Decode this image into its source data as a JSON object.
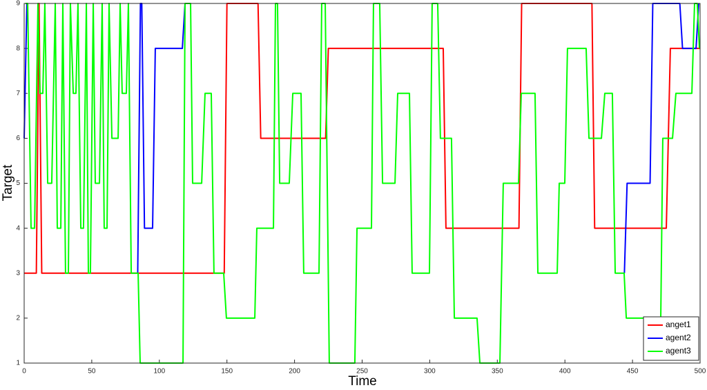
{
  "chart_data": {
    "type": "line",
    "xlabel": "Time",
    "ylabel": "Target",
    "xlim": [
      0,
      500
    ],
    "ylim": [
      1,
      9
    ],
    "xticks": [
      0,
      50,
      100,
      150,
      200,
      250,
      300,
      350,
      400,
      450,
      500
    ],
    "yticks": [
      1,
      2,
      3,
      4,
      5,
      6,
      7,
      8,
      9
    ],
    "grid": false,
    "legend": "southeast",
    "series": [
      {
        "name": "anget1",
        "color": "#ff0000",
        "x": [
          0,
          9,
          11,
          13,
          148,
          150,
          173,
          175,
          223,
          225,
          310,
          312,
          366,
          368,
          420,
          422,
          475,
          478,
          500
        ],
        "values": [
          3,
          3,
          9,
          3,
          3,
          9,
          9,
          6,
          6,
          8,
          8,
          4,
          4,
          9,
          9,
          4,
          4,
          8,
          8
        ]
      },
      {
        "name": "agent2",
        "color": "#0000ff",
        "x": [
          0,
          2,
          4,
          84,
          86,
          87,
          89,
          95,
          97,
          117,
          119,
          150,
          444,
          446,
          463,
          465,
          485,
          487,
          497,
          499
        ],
        "values": [
          6,
          9,
          null,
          3,
          9,
          9,
          4,
          4,
          8,
          8,
          9,
          null,
          3,
          5,
          5,
          9,
          9,
          8,
          8,
          9
        ]
      },
      {
        "name": "agent3",
        "color": "#00ff00",
        "x": [
          1,
          2.6,
          5.1,
          7.7,
          10.2,
          11.7,
          13.8,
          15.3,
          17.4,
          20.4,
          23,
          24.5,
          27.1,
          28.6,
          30.6,
          32.7,
          34.2,
          36.3,
          38.3,
          39.8,
          41.9,
          43.9,
          46,
          47.5,
          49,
          51.1,
          52.6,
          55.7,
          57.7,
          59.2,
          61.3,
          62.8,
          64.9,
          69.5,
          71,
          72.5,
          75.6,
          77.1,
          79.2,
          84.3,
          85.8,
          117.5,
          119,
          123.1,
          124.6,
          131.3,
          133.8,
          138.4,
          140.4,
          147.6,
          149.6,
          170.6,
          172.1,
          184.4,
          185.9,
          187.4,
          189,
          196.1,
          198.7,
          204.8,
          206.8,
          218.1,
          220.1,
          222.7,
          225.7,
          244.6,
          246.2,
          256.9,
          258.4,
          263,
          265.1,
          274.3,
          276.3,
          285,
          287,
          299.8,
          301.8,
          305.9,
          307.9,
          316.1,
          318.2,
          335,
          337.1,
          351.9,
          354.4,
          365.7,
          367.7,
          377.9,
          380,
          394.3,
          395.8,
          399.9,
          401.9,
          415.7,
          417.8,
          427,
          429.5,
          435.1,
          437.2,
          443.8,
          445.4,
          470.9,
          472.4,
          479.6,
          482.1,
          493.9,
          495.9,
          497.9,
          499.5
        ],
        "values": [
          9,
          9,
          4,
          4,
          9,
          7,
          7,
          9,
          5,
          5,
          9,
          4,
          4,
          9,
          3,
          3,
          9,
          7,
          7,
          9,
          4,
          4,
          9,
          3,
          3,
          9,
          5,
          5,
          9,
          4,
          4,
          9,
          6,
          6,
          9,
          7,
          7,
          9,
          3,
          3,
          1,
          1,
          9,
          9,
          5,
          5,
          7,
          7,
          3,
          3,
          2,
          2,
          4,
          4,
          9,
          9,
          5,
          5,
          7,
          7,
          3,
          3,
          9,
          9,
          1,
          1,
          4,
          4,
          9,
          9,
          5,
          5,
          7,
          7,
          3,
          3,
          9,
          9,
          6,
          6,
          2,
          2,
          1,
          1,
          5,
          5,
          7,
          7,
          3,
          3,
          5,
          5,
          8,
          8,
          6,
          6,
          7,
          7,
          3,
          3,
          2,
          2,
          6,
          6,
          7,
          7,
          9,
          9,
          8
        ]
      }
    ]
  }
}
